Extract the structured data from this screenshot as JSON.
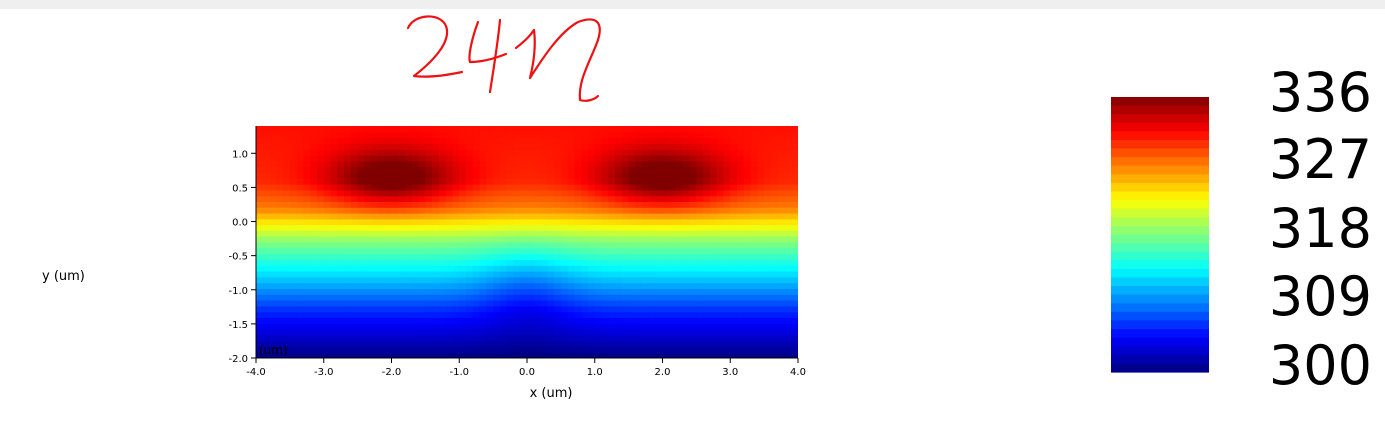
{
  "handwritten_annotation": "24M",
  "chart_data": {
    "type": "heatmap",
    "title": "",
    "xlabel": "x (um)",
    "ylabel": "y (um)",
    "xlim": [
      -4.0,
      4.0
    ],
    "ylim": [
      -2.0,
      1.4
    ],
    "x_ticks": [
      "-4.0",
      "-3.0",
      "-2.0",
      "-1.0",
      "0.0",
      "1.0",
      "2.0",
      "3.0",
      "4.0"
    ],
    "x_tick_values": [
      -4,
      -3,
      -2,
      -1,
      0,
      1,
      2,
      3,
      4
    ],
    "y_ticks": [
      "-2.0",
      "-1.5",
      "-1.0",
      "-0.5",
      "0.0",
      "0.5",
      "1.0"
    ],
    "y_tick_values": [
      -2.0,
      -1.5,
      -1.0,
      -0.5,
      0.0,
      0.5,
      1.0
    ],
    "inner_label": "(um)",
    "colormap": "jet",
    "value_range": [
      300,
      336
    ],
    "colorbar_labels": [
      "336",
      "327",
      "318",
      "309",
      "300"
    ],
    "hot_spots": [
      {
        "x": -2.0,
        "y": 0.65,
        "value": 336
      },
      {
        "x": 2.0,
        "y": 0.65,
        "value": 336
      }
    ],
    "profile_at_x_edge": [
      {
        "y": 1.4,
        "value": 331
      },
      {
        "y": 0.6,
        "value": 330
      },
      {
        "y": 0.2,
        "value": 327
      },
      {
        "y": -0.3,
        "value": 318
      },
      {
        "y": -0.8,
        "value": 312
      },
      {
        "y": -1.3,
        "value": 306
      },
      {
        "y": -2.0,
        "value": 300
      }
    ],
    "grid": false
  }
}
